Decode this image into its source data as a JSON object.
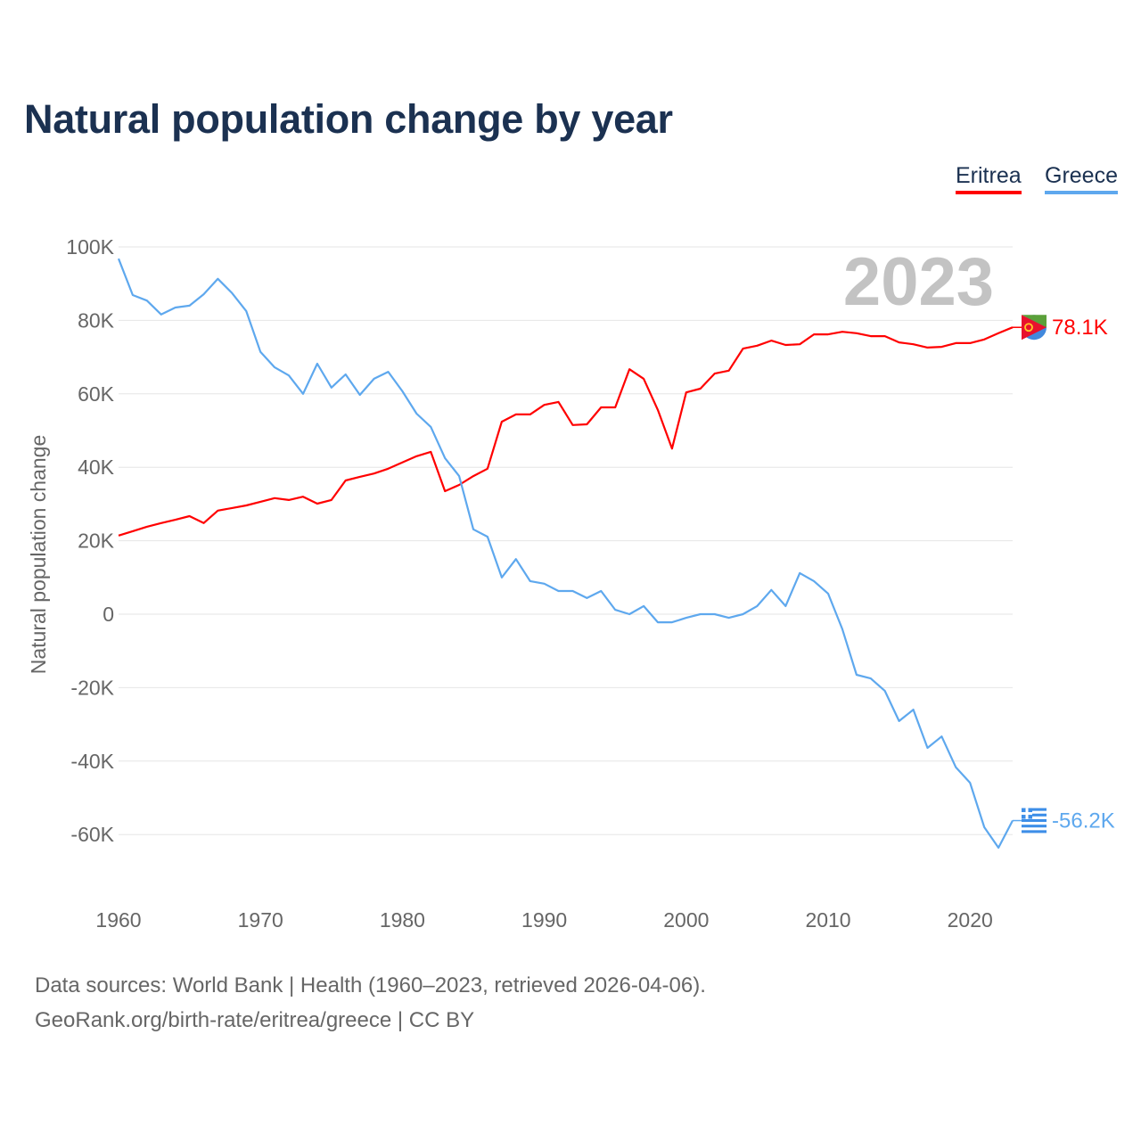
{
  "title": "Natural population change by year",
  "legend": [
    {
      "label": "Eritrea",
      "color": "#ff0000"
    },
    {
      "label": "Greece",
      "color": "#5ea8ee"
    }
  ],
  "footer": {
    "line1": "Data sources: World Bank | Health (1960–2023, retrieved 2026-04-06).",
    "line2": "GeoRank.org/birth-rate/eritrea/greece | CC BY"
  },
  "chart_data": {
    "type": "line",
    "title": "Natural population change by year",
    "ylabel": "Natural population change",
    "xlabel": "",
    "year_watermark": "2023",
    "xlim": [
      1960,
      2023
    ],
    "ylim": [
      -70000,
      100000
    ],
    "x_ticks": [
      1960,
      1970,
      1980,
      1990,
      2000,
      2010,
      2020
    ],
    "y_ticks": [
      {
        "v": 100000,
        "label": "100K"
      },
      {
        "v": 80000,
        "label": "80K"
      },
      {
        "v": 60000,
        "label": "60K"
      },
      {
        "v": 40000,
        "label": "40K"
      },
      {
        "v": 20000,
        "label": "20K"
      },
      {
        "v": 0,
        "label": "0"
      },
      {
        "v": -20000,
        "label": "-20K"
      },
      {
        "v": -40000,
        "label": "-40K"
      },
      {
        "v": -60000,
        "label": "-60K"
      }
    ],
    "grid": true,
    "legend_position": "top-right",
    "x_start": 1960,
    "series": [
      {
        "name": "Eritrea",
        "color": "#ff0000",
        "end_label": "78.1K",
        "values": [
          21.4,
          22.6,
          23.8,
          24.8,
          25.7,
          26.7,
          24.8,
          28.2,
          28.9,
          29.6,
          30.6,
          31.6,
          31.1,
          32.0,
          30.1,
          31.1,
          36.4,
          37.4,
          38.3,
          39.6,
          41.3,
          43.0,
          44.2,
          33.5,
          35.2,
          37.6,
          39.6,
          52.4,
          54.4,
          54.4,
          57.0,
          57.8,
          51.5,
          51.7,
          56.3,
          56.3,
          66.7,
          64.1,
          55.6,
          45.1,
          60.4,
          61.4,
          65.5,
          66.3,
          72.3,
          73.1,
          74.5,
          73.3,
          73.5,
          76.2,
          76.2,
          76.9,
          76.5,
          75.7,
          75.7,
          74.0,
          73.5,
          72.6,
          72.8,
          73.8,
          73.8,
          74.8,
          76.5,
          78.1
        ]
      },
      {
        "name": "Greece",
        "color": "#5ea8ee",
        "end_label": "-56.2K",
        "values": [
          96.8,
          86.9,
          85.4,
          81.6,
          83.5,
          84.0,
          87.1,
          91.3,
          87.4,
          82.5,
          71.4,
          67.2,
          65.0,
          60.0,
          68.2,
          61.7,
          65.3,
          59.7,
          64.1,
          66.0,
          60.7,
          54.6,
          51.0,
          42.5,
          37.6,
          23.1,
          21.1,
          10.0,
          15.0,
          9.0,
          8.3,
          6.3,
          6.3,
          4.4,
          6.3,
          1.2,
          0,
          2.2,
          -2.2,
          -2.2,
          -1.0,
          0,
          0,
          -1.0,
          0,
          2.2,
          6.6,
          2.2,
          11.2,
          9.0,
          5.6,
          -4.1,
          -16.5,
          -17.5,
          -20.9,
          -29.1,
          -26.0,
          -36.4,
          -33.3,
          -41.7,
          -45.9,
          -58.0,
          -63.6,
          -56.2
        ]
      }
    ],
    "value_unit_note": "values in thousands"
  }
}
